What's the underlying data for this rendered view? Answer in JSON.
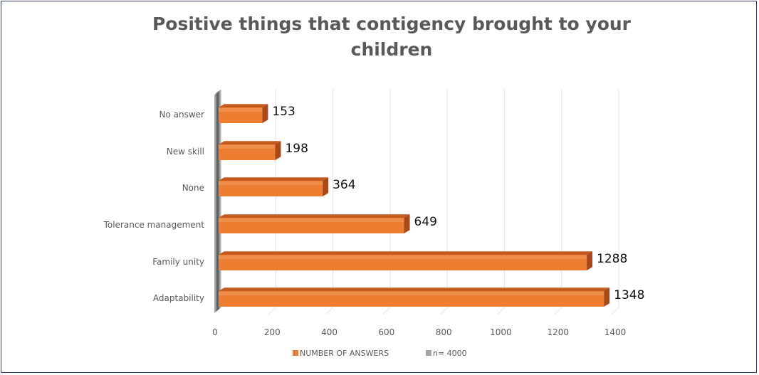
{
  "chart_data": {
    "type": "bar",
    "orientation": "horizontal",
    "title": "Positive things that contigency brought to your children",
    "categories": [
      "No answer",
      "New skill",
      "None",
      "Tolerance management",
      "Family unity",
      "Adaptability"
    ],
    "series": [
      {
        "name": "NUMBER OF ANSWERS",
        "values": [
          153,
          198,
          364,
          649,
          1288,
          1348
        ],
        "color": "#ed7d31"
      }
    ],
    "legend": [
      {
        "label": "NUMBER OF ANSWERS",
        "color": "#ed7d31"
      },
      {
        "label": "n= 4000",
        "color": "#a5a5a5"
      }
    ],
    "legend_position": "bottom",
    "xlim": [
      0,
      1400
    ],
    "xticks": [
      "0",
      "200",
      "400",
      "600",
      "800",
      "1000",
      "1200",
      "1400"
    ],
    "grid": true,
    "style": "3d"
  }
}
